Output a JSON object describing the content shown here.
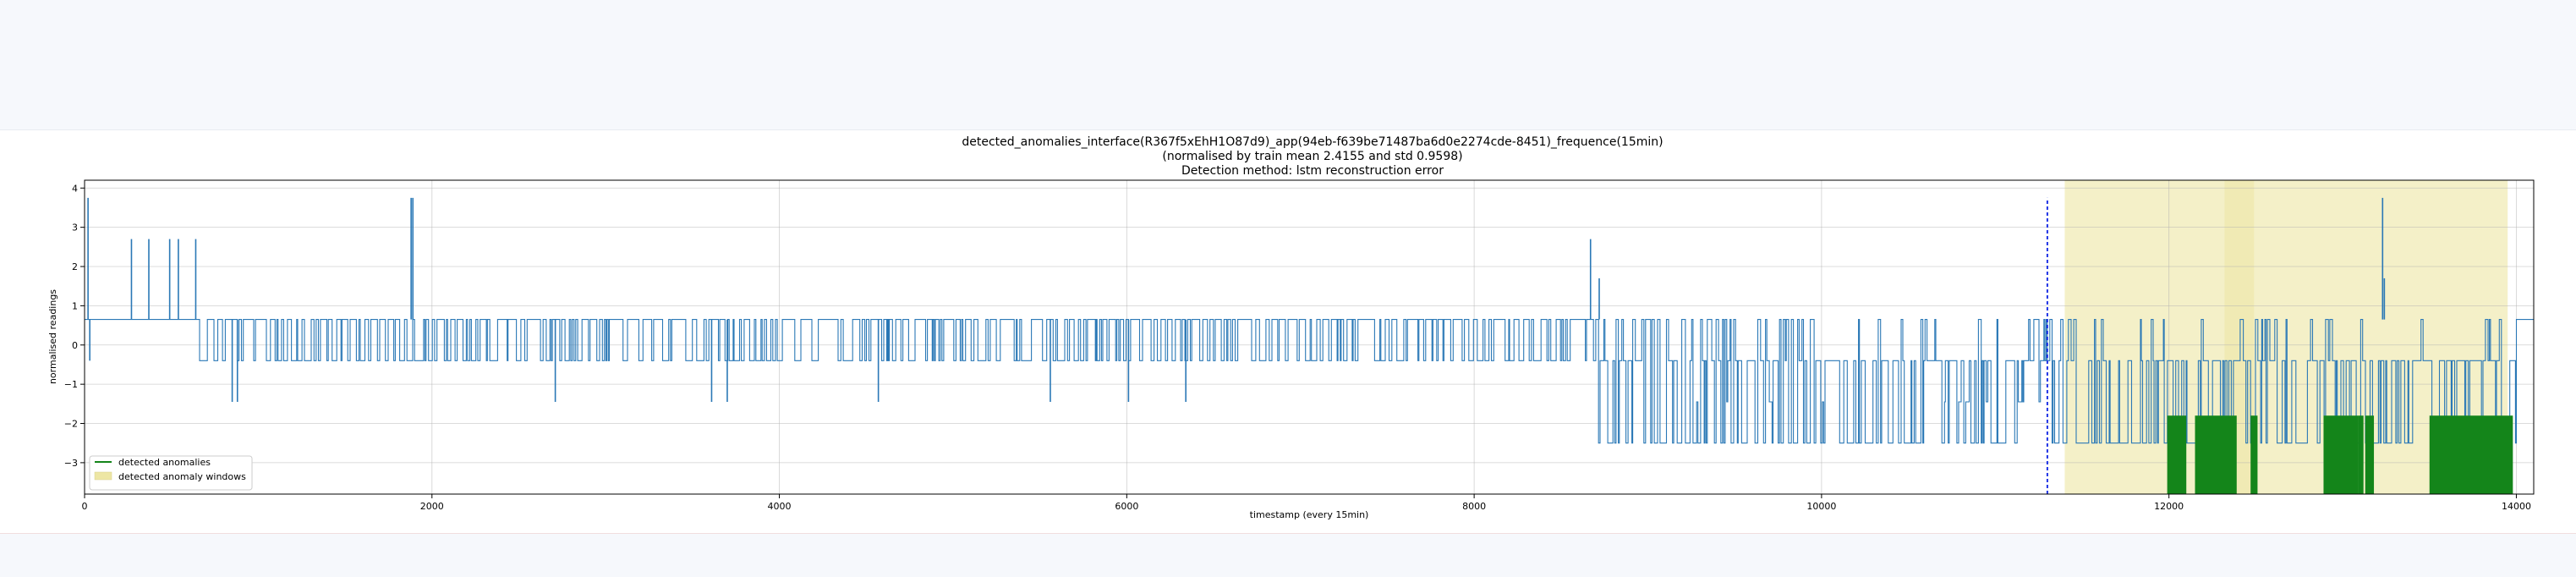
{
  "chart_data": {
    "type": "line",
    "title": "detected_anomalies_interface(R367f5xEhH1O87d9)_app(94eb-f639be71487ba6d0e2274cde-8451)_frequence(15min)",
    "subtitle": "(normalised by train mean 2.4155 and std 0.9598)",
    "subtitle2": "Detection method: lstm reconstruction error",
    "xlabel": "timestamp (every 15min)",
    "ylabel": "normalised readings",
    "xlim": [
      0,
      14100
    ],
    "ylim": [
      -3.8,
      4.2
    ],
    "xticks": [
      0,
      2000,
      4000,
      6000,
      8000,
      10000,
      12000,
      14000
    ],
    "yticks": [
      -3,
      -2,
      -1,
      0,
      1,
      2,
      3,
      4
    ],
    "grid": true,
    "legend_position": "lower-left",
    "series": [
      {
        "name": "",
        "color": "#2a78b6",
        "levels": [
          3.75,
          2.7,
          0.65,
          -0.4,
          -1.45,
          -2.5
        ],
        "segments": [
          {
            "x": [
              0,
              650
            ],
            "base": 0.65,
            "mix": [
              [
                0.65,
                1.0
              ]
            ]
          },
          {
            "x": [
              650,
              8700
            ],
            "base": 0.65,
            "mix": [
              [
                0.65,
                0.6
              ],
              [
                -0.4,
                0.4
              ]
            ]
          },
          {
            "x": [
              8700,
              11300
            ],
            "base": -0.4,
            "mix": [
              [
                0.65,
                0.15
              ],
              [
                -0.4,
                0.45
              ],
              [
                -1.45,
                0.05
              ],
              [
                -2.5,
                0.35
              ]
            ]
          },
          {
            "x": [
              11300,
              14000
            ],
            "base": -0.4,
            "mix": [
              [
                0.65,
                0.1
              ],
              [
                -0.4,
                0.5
              ],
              [
                -2.5,
                0.4
              ]
            ]
          },
          {
            "x": [
              14000,
              14100
            ],
            "base": 0.65,
            "mix": [
              [
                0.65,
                1.0
              ]
            ]
          }
        ],
        "spikes": [
          {
            "x": 20,
            "y": 3.75
          },
          {
            "x": 30,
            "y": -0.4
          },
          {
            "x": 270,
            "y": 2.7
          },
          {
            "x": 370,
            "y": 2.7
          },
          {
            "x": 490,
            "y": 2.7
          },
          {
            "x": 540,
            "y": 2.7
          },
          {
            "x": 640,
            "y": 2.7
          },
          {
            "x": 850,
            "y": -1.45
          },
          {
            "x": 880,
            "y": -1.45
          },
          {
            "x": 1880,
            "y": 3.75
          },
          {
            "x": 1890,
            "y": 3.75
          },
          {
            "x": 2710,
            "y": -1.45
          },
          {
            "x": 3610,
            "y": -1.45
          },
          {
            "x": 3700,
            "y": -1.45
          },
          {
            "x": 4570,
            "y": -1.45
          },
          {
            "x": 5560,
            "y": -1.45
          },
          {
            "x": 6010,
            "y": -1.45
          },
          {
            "x": 6340,
            "y": -1.45
          },
          {
            "x": 8670,
            "y": 2.7
          },
          {
            "x": 8720,
            "y": 1.7
          },
          {
            "x": 13230,
            "y": 3.75
          },
          {
            "x": 13240,
            "y": 1.7
          }
        ]
      },
      {
        "name": "detected anomalies",
        "color": "#14851a",
        "low": -3.8,
        "high": -1.8,
        "blocks": [
          {
            "x": [
              11990,
              12100
            ]
          },
          {
            "x": [
              12150,
              12390
            ]
          },
          {
            "x": [
              12470,
              12510
            ]
          },
          {
            "x": [
              12890,
              13090
            ]
          },
          {
            "x": [
              13090,
              13120
            ]
          },
          {
            "x": [
              13130,
              13180
            ]
          },
          {
            "x": [
              13500,
              13980
            ]
          }
        ]
      }
    ],
    "anomaly_windows": {
      "name": "detected anomaly windows",
      "color": "#ede6a4",
      "ranges": [
        [
          11400,
          13950
        ],
        [
          12320,
          12490
        ]
      ]
    },
    "threshold_marker": {
      "x": 11300,
      "color": "#1f33e6",
      "ymin": -3.8,
      "ymax": 3.75
    }
  }
}
